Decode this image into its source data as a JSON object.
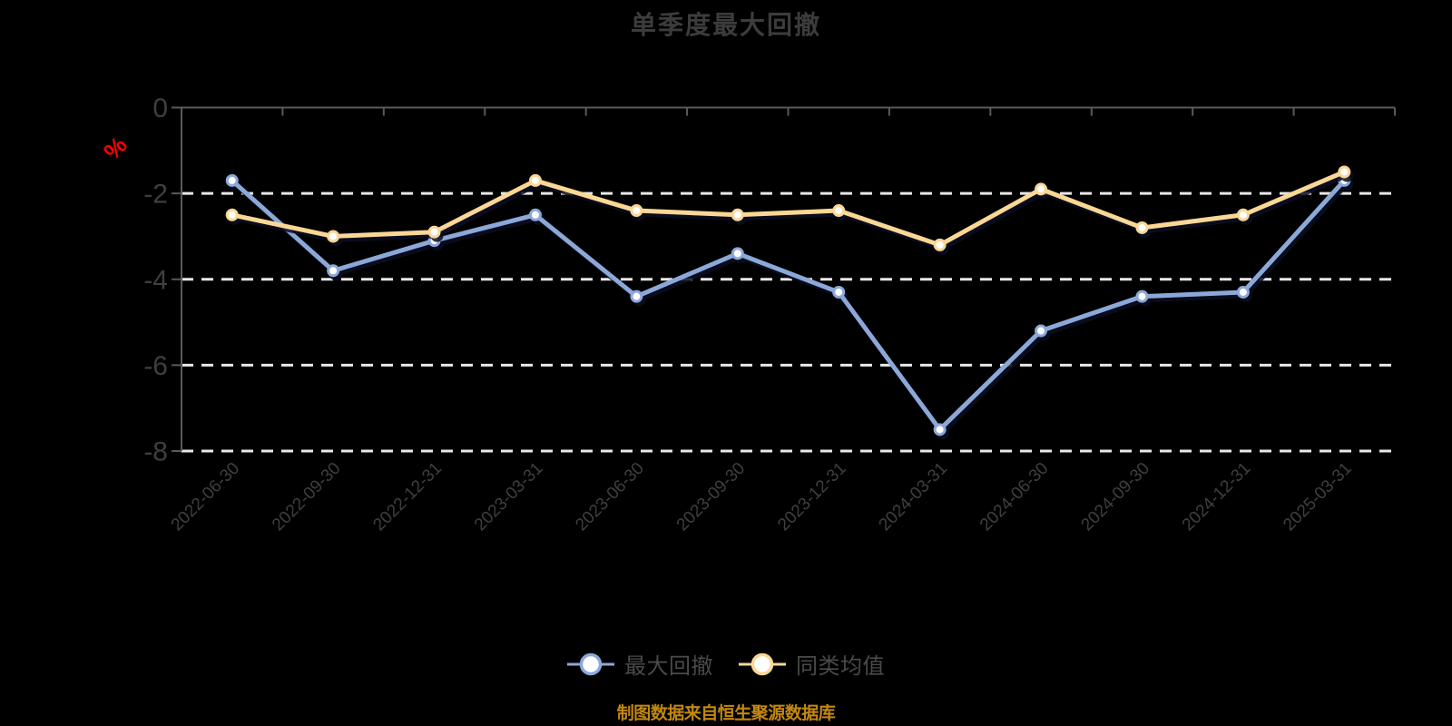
{
  "title": "单季度最大回撤",
  "source_note": "制图数据来自恒生聚源数据库",
  "y_axis": {
    "unit_label": "%",
    "ticks": [
      "0",
      "-2",
      "-4",
      "-6",
      "-8"
    ]
  },
  "legend": {
    "items": [
      "最大回撤",
      "同类均值"
    ]
  },
  "colors": {
    "background": "#000000",
    "title_text": "#3c3c3c",
    "axis": "#5a5a5a",
    "grid": "#e8e8e8",
    "label": "#3f3f3f",
    "legend_text": "#4a4a4a",
    "percent": "#ff0000",
    "source_text": "#c2880f",
    "series_blue": "#8ca8d9",
    "series_yellow": "#fad795"
  },
  "chart_data": {
    "type": "line",
    "title": "单季度最大回撤",
    "ylabel": "%",
    "ylim": [
      -8,
      0
    ],
    "grid": true,
    "legend_position": "bottom",
    "categories": [
      "2022-06-30",
      "2022-09-30",
      "2022-12-31",
      "2023-03-31",
      "2023-06-30",
      "2023-09-30",
      "2023-12-31",
      "2024-03-31",
      "2024-06-30",
      "2024-09-30",
      "2024-12-31",
      "2025-03-31"
    ],
    "series": [
      {
        "name": "最大回撤",
        "color": "#8ca8d9",
        "values": [
          -1.7,
          -3.8,
          -3.1,
          -2.5,
          -4.4,
          -3.4,
          -4.3,
          -7.5,
          -5.2,
          -4.4,
          -4.3,
          -1.7
        ]
      },
      {
        "name": "同类均值",
        "color": "#fad795",
        "values": [
          -2.5,
          -3.0,
          -2.9,
          -1.7,
          -2.4,
          -2.5,
          -2.4,
          -3.2,
          -1.9,
          -2.8,
          -2.5,
          -1.5
        ]
      }
    ]
  }
}
